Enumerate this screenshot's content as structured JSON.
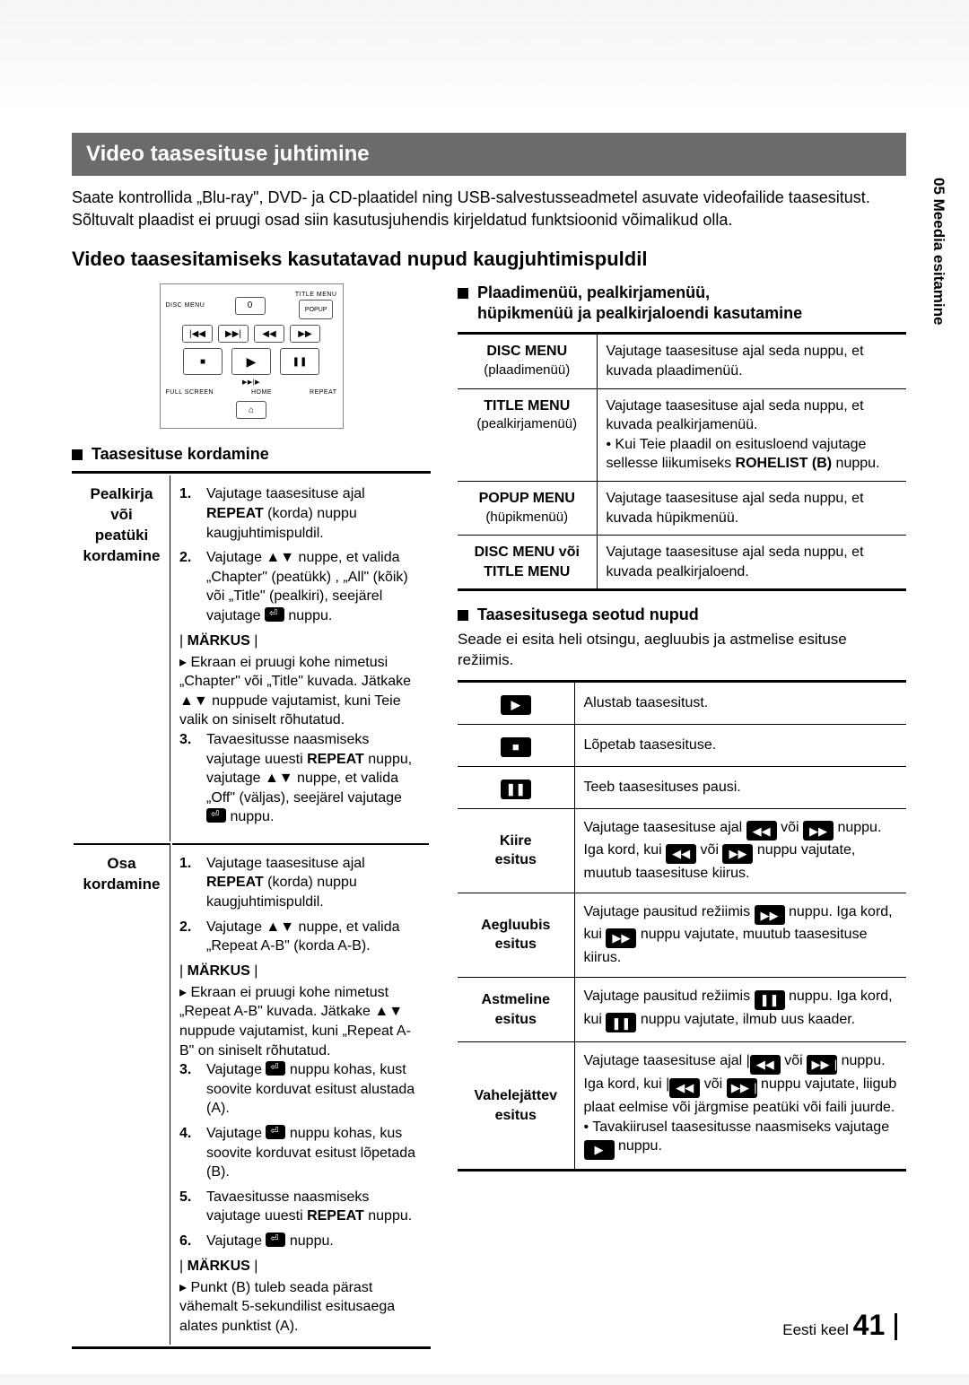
{
  "section_title": "Video taasesituse juhtimine",
  "intro": "Saate kontrollida „Blu-ray\", DVD- ja CD-plaatidel ning USB-salvestusseadmetel asuvate videofailide taasesitust. Sõltuvalt plaadist ei pruugi osad siin kasutusjuhendis kirjeldatud funktsioonid võimalikud olla.",
  "subheading": "Video taasesitamiseks kasutatavad nupud kaugjuhtimispuldil",
  "sidetab": "05   Meedia esitamine",
  "remote": {
    "disc_menu": "DISC MENU",
    "title_menu": "TITLE MENU",
    "popup": "POPUP",
    "zero": "0",
    "full": "FULL SCREEN",
    "home": "HOME",
    "repeat": "REPEAT",
    "audio_sym": "▶▶|▶"
  },
  "repeat_heading": "Taasesituse kordamine",
  "left_rows": [
    {
      "label": "Pealkirja või peatüki kordamine",
      "steps": [
        {
          "n": "1.",
          "t": "Vajutage taasesituse ajal REPEAT (korda) nuppu kaugjuhtimispuldil."
        },
        {
          "n": "2.",
          "t": "Vajutage ▲▼ nuppe, et valida „Chapter\" (peatükk) , „All\" (kõik) või „Title\" (pealkiri), seejärel vajutage ⏎ nuppu."
        }
      ],
      "note_h": "MÄRKUS",
      "notes": [
        "Ekraan ei pruugi kohe nimetusi „Chapter\" või „Title\" kuvada. Jätkake ▲▼ nuppude vajutamist, kuni Teie valik on siniselt rõhutatud."
      ],
      "steps2": [
        {
          "n": "3.",
          "t": "Tavaesitusse naasmiseks vajutage uuesti REPEAT nuppu, vajutage ▲▼ nuppe, et valida „Off\" (väljas), seejärel vajutage ⏎ nuppu."
        }
      ]
    },
    {
      "label": "Osa kordamine",
      "steps": [
        {
          "n": "1.",
          "t": "Vajutage taasesituse ajal REPEAT (korda) nuppu kaugjuhtimispuldil."
        },
        {
          "n": "2.",
          "t": "Vajutage ▲▼ nuppe, et valida „Repeat A-B\" (korda A-B)."
        }
      ],
      "note_h": "MÄRKUS",
      "notes": [
        "Ekraan ei pruugi kohe nimetust „Repeat A-B\" kuvada.  Jätkake ▲▼ nuppude vajutamist, kuni „Repeat A-B\" on siniselt rõhutatud."
      ],
      "steps2": [
        {
          "n": "3.",
          "t": "Vajutage ⏎ nuppu kohas, kust soovite korduvat esitust alustada (A)."
        },
        {
          "n": "4.",
          "t": "Vajutage ⏎ nuppu kohas, kus soovite korduvat esitust lõpetada (B)."
        },
        {
          "n": "5.",
          "t": "Tavaesitusse naasmiseks vajutage uuesti REPEAT nuppu."
        },
        {
          "n": "6.",
          "t": "Vajutage ⏎ nuppu."
        }
      ],
      "note_h2": "MÄRKUS",
      "notes2": [
        "Punkt (B) tuleb seada pärast vähemalt 5-sekundilist esitusaega alates punktist (A)."
      ]
    }
  ],
  "right_head1": "Plaadimenüü, pealkirjamenüü,",
  "right_head2": "hüpikmenüü ja pealkirjaloendi kasutamine",
  "menu_table": [
    {
      "m": "DISC MENU",
      "s": "(plaadimenüü)",
      "t": "Vajutage taasesituse ajal seda nuppu, et kuvada plaadimenüü."
    },
    {
      "m": "TITLE MENU",
      "s": "(pealkirjamenüü)",
      "t": "Vajutage taasesituse ajal seda nuppu, et kuvada pealkirjamenüü.\n• Kui Teie plaadil on esitusloend vajutage sellesse liikumiseks ROHELIST (B) nuppu."
    },
    {
      "m": "POPUP MENU",
      "s": "(hüpikmenüü)",
      "t": "Vajutage taasesituse ajal seda nuppu, et kuvada hüpikmenüü."
    },
    {
      "m": "DISC MENU või TITLE MENU",
      "s": "",
      "t": "Vajutage taasesituse ajal seda nuppu, et kuvada pealkirjaloend."
    }
  ],
  "play_sub_h": "Taasesitusega seotud nupud",
  "play_p": "Seade ei esita heli otsingu, aegluubis ja astmelise esituse režiimis.",
  "play_table": [
    {
      "icon": "▶",
      "label": "",
      "t": "Alustab taasesitust."
    },
    {
      "icon": "■",
      "label": "",
      "t": "Lõpetab taasesituse."
    },
    {
      "icon": "❚❚",
      "label": "",
      "t": "Teeb taasesituses pausi."
    },
    {
      "icon": "",
      "label": "Kiire esitus",
      "t": "Vajutage taasesituse ajal ◀◀ või ▶▶ nuppu. Iga kord, kui ◀◀ või ▶▶ nuppu vajutate, muutub taasesituse kiirus."
    },
    {
      "icon": "",
      "label": "Aegluubis esitus",
      "t": "Vajutage pausitud režiimis  ▶▶  nuppu. Iga kord, kui ▶▶ nuppu vajutate, muutub taasesituse kiirus."
    },
    {
      "icon": "",
      "label": "Astmeline esitus",
      "t": "Vajutage pausitud režiimis ❚❚ nuppu. Iga kord, kui ❚❚ nuppu vajutate, ilmub uus kaader."
    },
    {
      "icon": "",
      "label": "Vahelejättev esitus",
      "t": "Vajutage taasesituse ajal |◀◀ või ▶▶| nuppu. Iga kord, kui |◀◀ või ▶▶| nuppu vajutate, liigub plaat eelmise või järgmise peatüki või faili juurde.\n•  Tavakiirusel taasesitusse naasmiseks vajutage ▶ nuppu."
    }
  ],
  "footer_lang": "Eesti keel",
  "footer_page": "41"
}
